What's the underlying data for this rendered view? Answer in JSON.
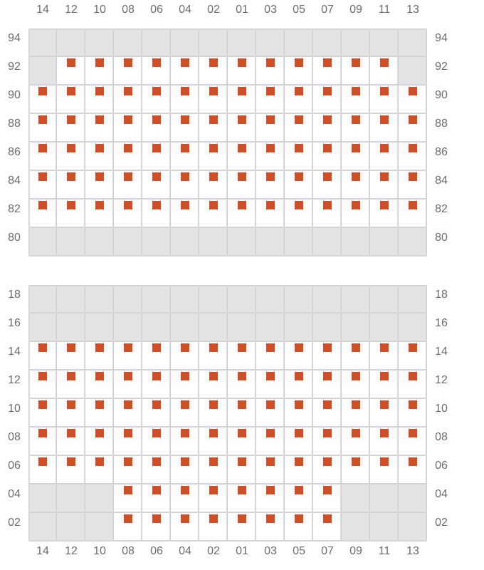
{
  "columns": [
    "14",
    "12",
    "10",
    "08",
    "06",
    "04",
    "02",
    "01",
    "03",
    "05",
    "07",
    "09",
    "11",
    "13"
  ],
  "colors": {
    "seat": "#cf5028",
    "unavailable": "#e4e4e6",
    "grid": "#d4d4d6",
    "label": "#6b6b70"
  },
  "sections": [
    {
      "rows": [
        {
          "label": "94",
          "seats": []
        },
        {
          "label": "92",
          "seats": [
            "12",
            "10",
            "08",
            "06",
            "04",
            "02",
            "01",
            "03",
            "05",
            "07",
            "09",
            "11"
          ]
        },
        {
          "label": "90",
          "seats": "all"
        },
        {
          "label": "88",
          "seats": "all"
        },
        {
          "label": "86",
          "seats": "all"
        },
        {
          "label": "84",
          "seats": "all"
        },
        {
          "label": "82",
          "seats": "all"
        },
        {
          "label": "80",
          "seats": []
        }
      ]
    },
    {
      "rows": [
        {
          "label": "18",
          "seats": []
        },
        {
          "label": "16",
          "seats": []
        },
        {
          "label": "14",
          "seats": "all"
        },
        {
          "label": "12",
          "seats": "all"
        },
        {
          "label": "10",
          "seats": "all"
        },
        {
          "label": "08",
          "seats": "all"
        },
        {
          "label": "06",
          "seats": "all"
        },
        {
          "label": "04",
          "seats": [
            "08",
            "06",
            "04",
            "02",
            "01",
            "03",
            "05",
            "07"
          ]
        },
        {
          "label": "02",
          "seats": [
            "08",
            "06",
            "04",
            "02",
            "01",
            "03",
            "05",
            "07"
          ]
        }
      ]
    }
  ]
}
